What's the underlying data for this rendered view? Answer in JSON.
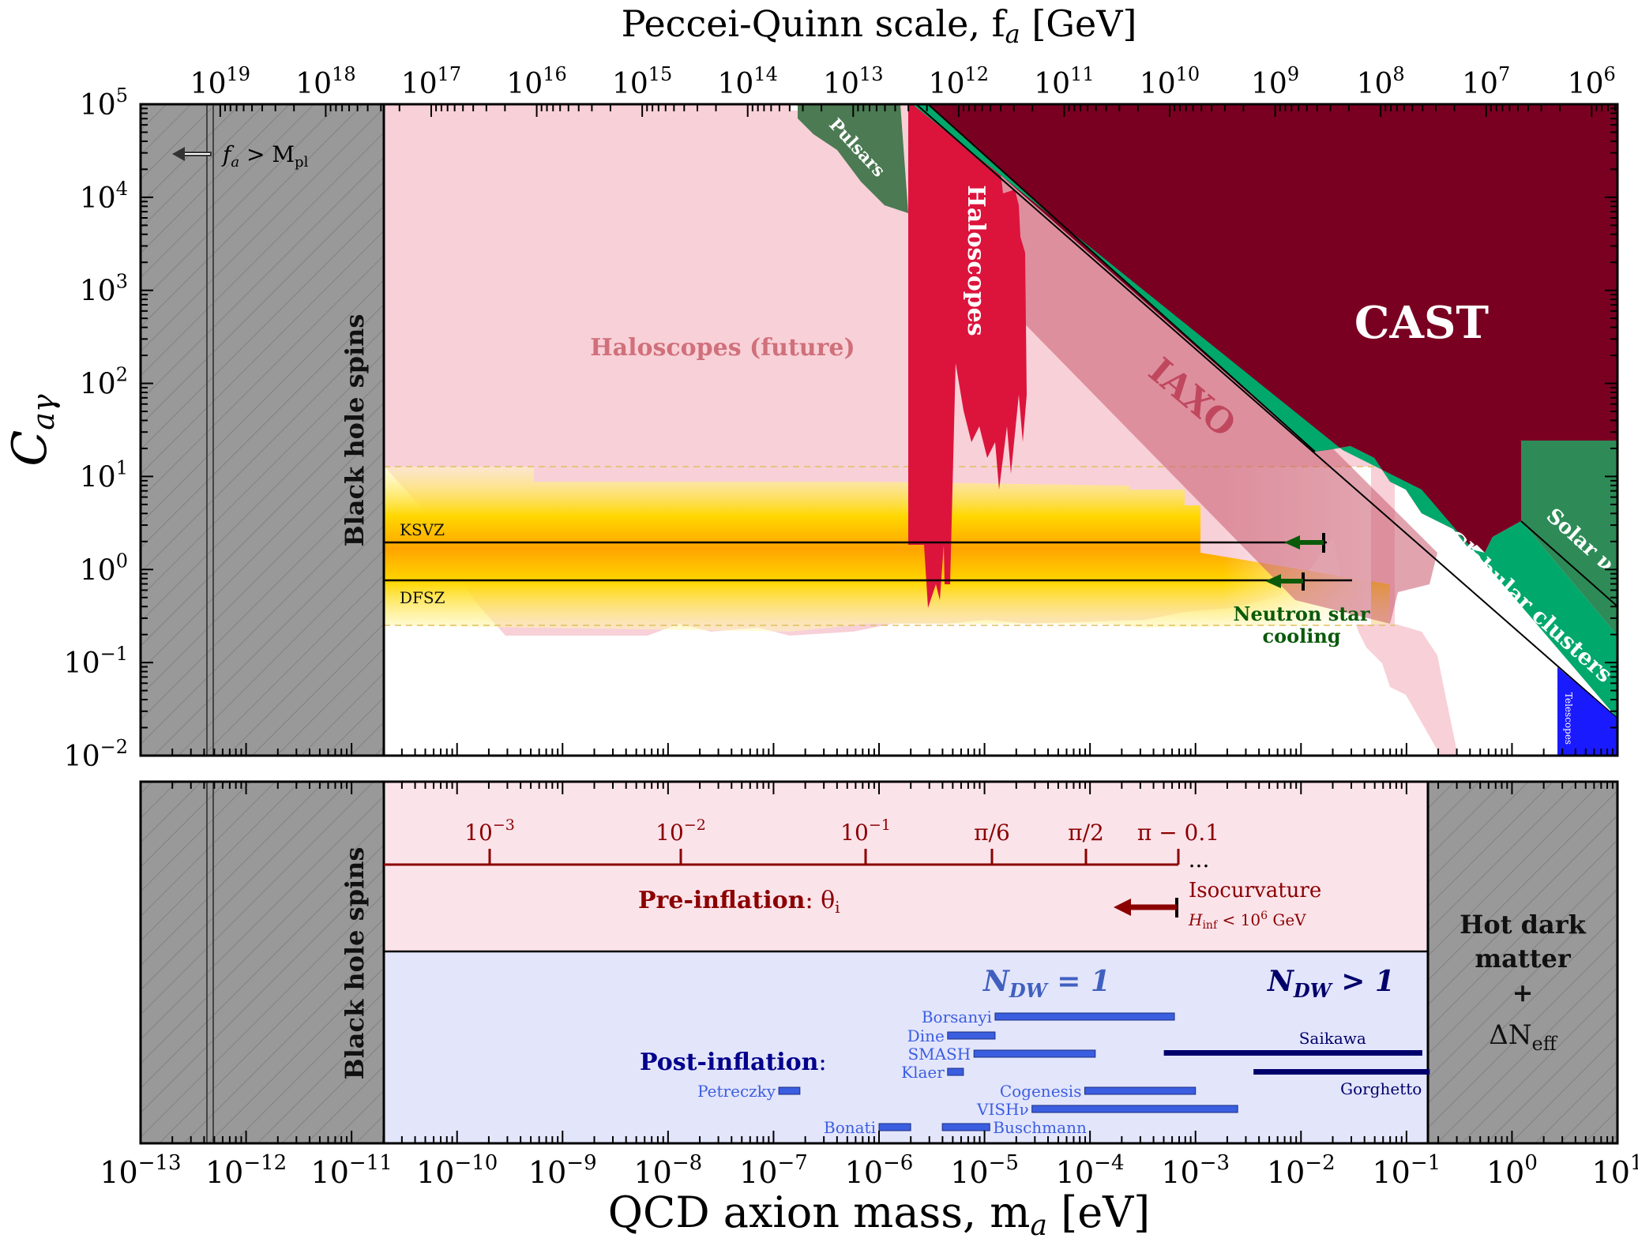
{
  "chart_data": {
    "type": "area",
    "top_axis_label": "Peccei-Quinn scale, f",
    "top_axis_label_sub": "a",
    "top_axis_label_unit": " [GeV]",
    "xlabel": "QCD axion mass, m",
    "xlabel_sub": "a",
    "xlabel_unit": " [eV]",
    "ylabel": "C",
    "ylabel_sub": "aγ",
    "xlim_log10": [
      -13,
      1
    ],
    "ylim_log10": [
      -2,
      5
    ],
    "x_ticks": [
      {
        "e": -13,
        "label": "10",
        "sup": "−13"
      },
      {
        "e": -12,
        "label": "10",
        "sup": "−12"
      },
      {
        "e": -11,
        "label": "10",
        "sup": "−11"
      },
      {
        "e": -10,
        "label": "10",
        "sup": "−10"
      },
      {
        "e": -9,
        "label": "10",
        "sup": "−9"
      },
      {
        "e": -8,
        "label": "10",
        "sup": "−8"
      },
      {
        "e": -7,
        "label": "10",
        "sup": "−7"
      },
      {
        "e": -6,
        "label": "10",
        "sup": "−6"
      },
      {
        "e": -5,
        "label": "10",
        "sup": "−5"
      },
      {
        "e": -4,
        "label": "10",
        "sup": "−4"
      },
      {
        "e": -3,
        "label": "10",
        "sup": "−3"
      },
      {
        "e": -2,
        "label": "10",
        "sup": "−2"
      },
      {
        "e": -1,
        "label": "10",
        "sup": "−1"
      },
      {
        "e": 0,
        "label": "10",
        "sup": "0"
      },
      {
        "e": 1,
        "label": "10",
        "sup": "1"
      }
    ],
    "y_ticks": [
      {
        "e": 5,
        "label": "10",
        "sup": "5"
      },
      {
        "e": 4,
        "label": "10",
        "sup": "4"
      },
      {
        "e": 3,
        "label": "10",
        "sup": "3"
      },
      {
        "e": 2,
        "label": "10",
        "sup": "2"
      },
      {
        "e": 1,
        "label": "10",
        "sup": "1"
      },
      {
        "e": 0,
        "label": "10",
        "sup": "0"
      },
      {
        "e": -1,
        "label": "10",
        "sup": "−1"
      },
      {
        "e": -2,
        "label": "10",
        "sup": "−2"
      }
    ],
    "fa_ticks": [
      {
        "e": 19,
        "label": "10",
        "sup": "19"
      },
      {
        "e": 18,
        "label": "10",
        "sup": "18"
      },
      {
        "e": 17,
        "label": "10",
        "sup": "17"
      },
      {
        "e": 16,
        "label": "10",
        "sup": "16"
      },
      {
        "e": 15,
        "label": "10",
        "sup": "15"
      },
      {
        "e": 14,
        "label": "10",
        "sup": "14"
      },
      {
        "e": 13,
        "label": "10",
        "sup": "13"
      },
      {
        "e": 12,
        "label": "10",
        "sup": "12"
      },
      {
        "e": 11,
        "label": "10",
        "sup": "11"
      },
      {
        "e": 10,
        "label": "10",
        "sup": "10"
      },
      {
        "e": 9,
        "label": "10",
        "sup": "9"
      },
      {
        "e": 8,
        "label": "10",
        "sup": "8"
      },
      {
        "e": 7,
        "label": "10",
        "sup": "7"
      },
      {
        "e": 6,
        "label": "10",
        "sup": "6"
      }
    ],
    "models": [
      {
        "name": "KSVZ",
        "C": 1.92
      },
      {
        "name": "DFSZ",
        "C": 0.75
      }
    ],
    "band_C": [
      0.25,
      12.7
    ],
    "black_hole_spins_max_ma_log10": -10.9,
    "planck_ma_log10": -12.4,
    "hot_dm_min_ma_log10": -0.78,
    "regions": [
      {
        "name": "CAST",
        "color": "#7a0022"
      },
      {
        "name": "Haloscopes",
        "color": "#dc143c"
      },
      {
        "name": "Haloscopes (future)",
        "color": "#f8d0d8"
      },
      {
        "name": "IAXO",
        "color": "#c85a6e"
      },
      {
        "name": "Pulsars",
        "color": "#4b7a53"
      },
      {
        "name": "Globular clusters",
        "color": "#00a86b"
      },
      {
        "name": "Solar ν",
        "color": "#2e8b57"
      },
      {
        "name": "Telescopes",
        "color": "#1a1aff"
      }
    ],
    "neutron_star_cooling": {
      "label_line1": "Neutron star",
      "label_line2": "cooling",
      "color": "#0a5a0a"
    },
    "annotations": {
      "planck": "f",
      "planck_sub": "a",
      "planck_rest": " > M",
      "planck_sub2": "pl",
      "bh_spins": "Black hole spins",
      "hot_dm_1": "Hot dark",
      "hot_dm_2": "matter",
      "hot_dm_3": "+",
      "hot_dm_4": "ΔN",
      "hot_dm_4_sub": "eff"
    },
    "pre_inflation": {
      "label": "Pre-inflation",
      "label_rest": ": θ",
      "label_sub": "i",
      "theta_ticks": [
        {
          "label": "10",
          "sup": "−3",
          "ma_log10": -3.76
        },
        {
          "label": "10",
          "sup": "−2",
          "ma_log10": -2.24
        },
        {
          "label": "10",
          "sup": "−1",
          "ma_log10": -0.69
        },
        {
          "label": "π/6",
          "sup": "",
          "ma_log10": 0.47
        },
        {
          "label": "π/2",
          "sup": "",
          "ma_log10": 1.32
        },
        {
          "label": "π − 0.1",
          "sup": "",
          "ma_log10": 2.11
        }
      ],
      "dots": "...",
      "isocurvature": "Isocurvature",
      "hinf": "H",
      "hinf_sub": "inf",
      "hinf_rest": " < 10",
      "hinf_sup": "6",
      "hinf_unit": " GeV"
    },
    "post_inflation": {
      "label": "Post-inflation",
      "label_rest": ":",
      "ndw1": "N",
      "ndw1_sub": "DW",
      "ndw1_rest": " = 1",
      "ndwgt": "N",
      "ndwgt_sub": "DW",
      "ndwgt_rest": " > 1",
      "estimates": [
        {
          "name": "Borsanyi",
          "range_log10": [
            -4.9,
            -3.2
          ],
          "group": 1
        },
        {
          "name": "Dine",
          "range_log10": [
            -5.35,
            -4.9
          ],
          "group": 1
        },
        {
          "name": "SMASH",
          "range_log10": [
            -5.1,
            -3.95
          ],
          "group": 1
        },
        {
          "name": "Klaer",
          "range_log10": [
            -5.35,
            -5.2
          ],
          "group": 1
        },
        {
          "name": "Cogenesis",
          "range_log10": [
            -4.05,
            -3.0
          ],
          "group": 1
        },
        {
          "name": "Petreczky",
          "range_log10": [
            -6.95,
            -6.75
          ],
          "group": 1
        },
        {
          "name": "VISHν",
          "range_log10": [
            -4.55,
            -2.6
          ],
          "group": 1
        },
        {
          "name": "Bonati",
          "range_log10": [
            -6.0,
            -5.7
          ],
          "group": 1
        },
        {
          "name": "Buschmann",
          "range_log10": [
            -5.4,
            -4.95
          ],
          "group": 1
        },
        {
          "name": "Saikawa",
          "range_log10": [
            -3.3,
            -0.85
          ],
          "group": 2
        },
        {
          "name": "Gorghetto",
          "range_log10": [
            -2.45,
            -0.78
          ],
          "group": 2
        }
      ]
    }
  }
}
